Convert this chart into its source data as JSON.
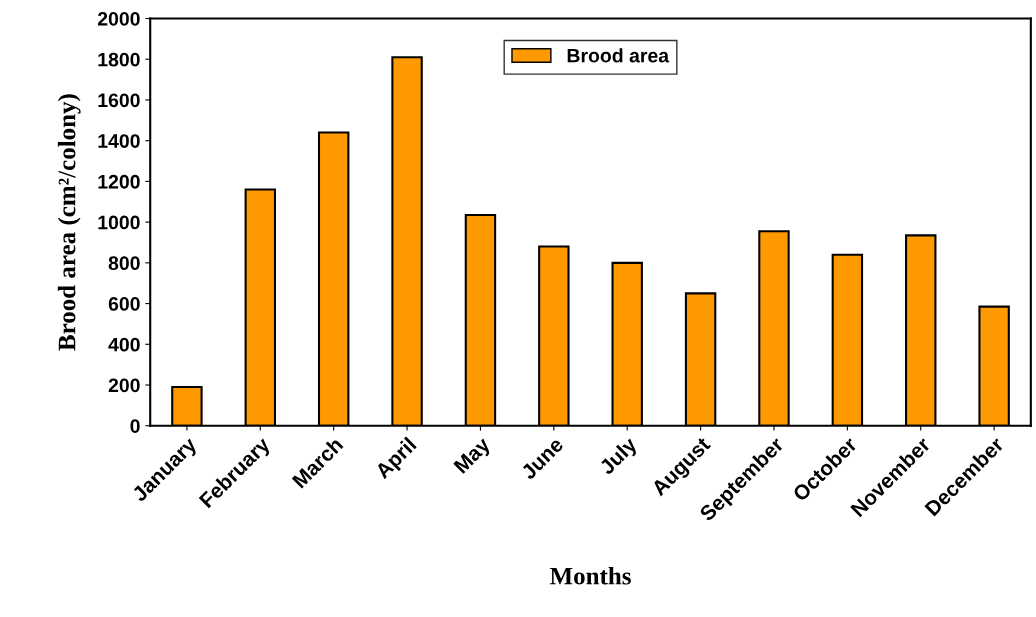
{
  "chart_data": {
    "type": "bar",
    "xlabel": "Months",
    "ylabel": "Brood area (cm²/colony)",
    "categories": [
      "January",
      "February",
      "March",
      "April",
      "May",
      "June",
      "July",
      "August",
      "September",
      "October",
      "November",
      "December"
    ],
    "series": [
      {
        "name": "Brood area",
        "color": "#ff9900",
        "values": [
          190,
          1160,
          1440,
          1810,
          1035,
          880,
          800,
          650,
          955,
          840,
          935,
          585
        ]
      }
    ],
    "ylim": [
      0,
      2000
    ],
    "yticks": [
      0,
      200,
      400,
      600,
      800,
      1000,
      1200,
      1400,
      1600,
      1800,
      2000
    ],
    "grid": false,
    "legend": "top"
  }
}
